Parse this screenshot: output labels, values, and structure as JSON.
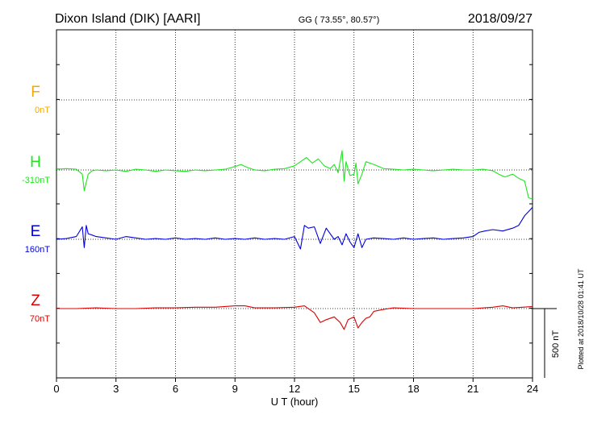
{
  "header": {
    "station": "Dixon Island (DIK)  [AARI]",
    "coords": "GG ( 73.55°,  80.57°)",
    "date": "2018/09/27"
  },
  "footer_note": "Plotted at 2018/10/28 01:41 UT",
  "scale_bar_label": "500 nT",
  "chart_data": {
    "type": "line",
    "xlabel": "U T (hour)",
    "xlim": [
      0,
      24
    ],
    "x_ticks": [
      0,
      3,
      6,
      9,
      12,
      15,
      18,
      21,
      24
    ],
    "x_tick_labels": [
      "0",
      "3",
      "6",
      "9",
      "12",
      "15",
      "18",
      "21",
      "24"
    ],
    "grid": true,
    "scale_bar_nT": 500,
    "series": [
      {
        "name": "F",
        "offset_label": "0nT",
        "color": "#f5a800",
        "x": [],
        "values": []
      },
      {
        "name": "H",
        "offset_label": "-310nT",
        "color": "#1fe51f",
        "x": [
          0,
          0.5,
          1.0,
          1.3,
          1.4,
          1.5,
          1.6,
          1.8,
          2.0,
          2.5,
          3.0,
          3.5,
          4.0,
          4.5,
          5.0,
          5.5,
          6.0,
          6.5,
          7.0,
          7.5,
          8.0,
          8.5,
          9.0,
          9.3,
          9.6,
          10.0,
          10.5,
          11.0,
          11.5,
          12.0,
          12.3,
          12.6,
          12.9,
          13.2,
          13.5,
          13.8,
          14.0,
          14.2,
          14.4,
          14.5,
          14.6,
          14.8,
          15.0,
          15.1,
          15.2,
          15.4,
          15.6,
          16.0,
          16.5,
          17.0,
          17.5,
          18.0,
          18.5,
          19.0,
          19.5,
          20.0,
          20.5,
          21.0,
          21.5,
          22.0,
          22.3,
          22.6,
          23.0,
          23.3,
          23.6,
          23.8,
          24.0
        ],
        "values": [
          5,
          10,
          5,
          -30,
          -150,
          -90,
          -30,
          -5,
          0,
          -5,
          0,
          -10,
          5,
          0,
          -10,
          0,
          -5,
          -10,
          0,
          -5,
          0,
          5,
          25,
          40,
          20,
          0,
          -5,
          5,
          10,
          30,
          60,
          90,
          50,
          80,
          30,
          10,
          40,
          -20,
          140,
          -80,
          60,
          -40,
          -30,
          50,
          -100,
          -30,
          60,
          40,
          10,
          5,
          0,
          5,
          0,
          -5,
          0,
          5,
          0,
          0,
          5,
          -5,
          -30,
          -50,
          -30,
          -60,
          -80,
          -200,
          -210
        ]
      },
      {
        "name": "E",
        "offset_label": "160nT",
        "color": "#0000dd",
        "x": [
          0,
          0.5,
          1.0,
          1.3,
          1.4,
          1.5,
          1.6,
          1.8,
          2.0,
          2.5,
          3.0,
          3.5,
          4.0,
          4.5,
          5.0,
          5.5,
          6.0,
          6.5,
          7.0,
          7.5,
          8.0,
          8.5,
          9.0,
          9.5,
          10.0,
          10.5,
          11.0,
          11.5,
          12.0,
          12.3,
          12.5,
          12.7,
          13.0,
          13.3,
          13.6,
          14.0,
          14.2,
          14.4,
          14.6,
          14.8,
          15.0,
          15.2,
          15.4,
          15.6,
          16.0,
          16.5,
          17.0,
          17.5,
          18.0,
          18.5,
          19.0,
          19.5,
          20.0,
          20.5,
          21.0,
          21.3,
          21.6,
          22.0,
          22.5,
          23.0,
          23.3,
          23.6,
          23.8,
          24.0
        ],
        "values": [
          0,
          5,
          20,
          90,
          -60,
          100,
          40,
          30,
          20,
          10,
          0,
          20,
          10,
          0,
          5,
          0,
          10,
          0,
          5,
          0,
          10,
          0,
          5,
          0,
          10,
          0,
          5,
          0,
          20,
          -70,
          100,
          80,
          90,
          -30,
          80,
          0,
          20,
          -40,
          40,
          -20,
          -60,
          40,
          -60,
          0,
          10,
          5,
          0,
          10,
          0,
          5,
          10,
          0,
          5,
          10,
          20,
          50,
          60,
          70,
          60,
          80,
          100,
          170,
          200,
          230
        ]
      },
      {
        "name": "Z",
        "offset_label": "70nT",
        "color": "#dd0000",
        "x": [
          0,
          1.0,
          2.0,
          3.0,
          4.0,
          5.0,
          6.0,
          7.0,
          8.0,
          9.0,
          9.5,
          10.0,
          11.0,
          12.0,
          12.5,
          13.0,
          13.3,
          13.6,
          14.0,
          14.3,
          14.5,
          14.7,
          15.0,
          15.2,
          15.4,
          15.6,
          15.8,
          16.0,
          16.5,
          17.0,
          18.0,
          19.0,
          20.0,
          21.0,
          22.0,
          22.5,
          23.0,
          23.5,
          24.0
        ],
        "values": [
          0,
          0,
          5,
          0,
          0,
          5,
          5,
          10,
          10,
          20,
          20,
          5,
          5,
          10,
          20,
          -30,
          -100,
          -80,
          -60,
          -100,
          -150,
          -80,
          -60,
          -140,
          -100,
          -70,
          -60,
          -20,
          -5,
          5,
          0,
          0,
          0,
          0,
          10,
          20,
          5,
          10,
          15
        ]
      }
    ]
  }
}
